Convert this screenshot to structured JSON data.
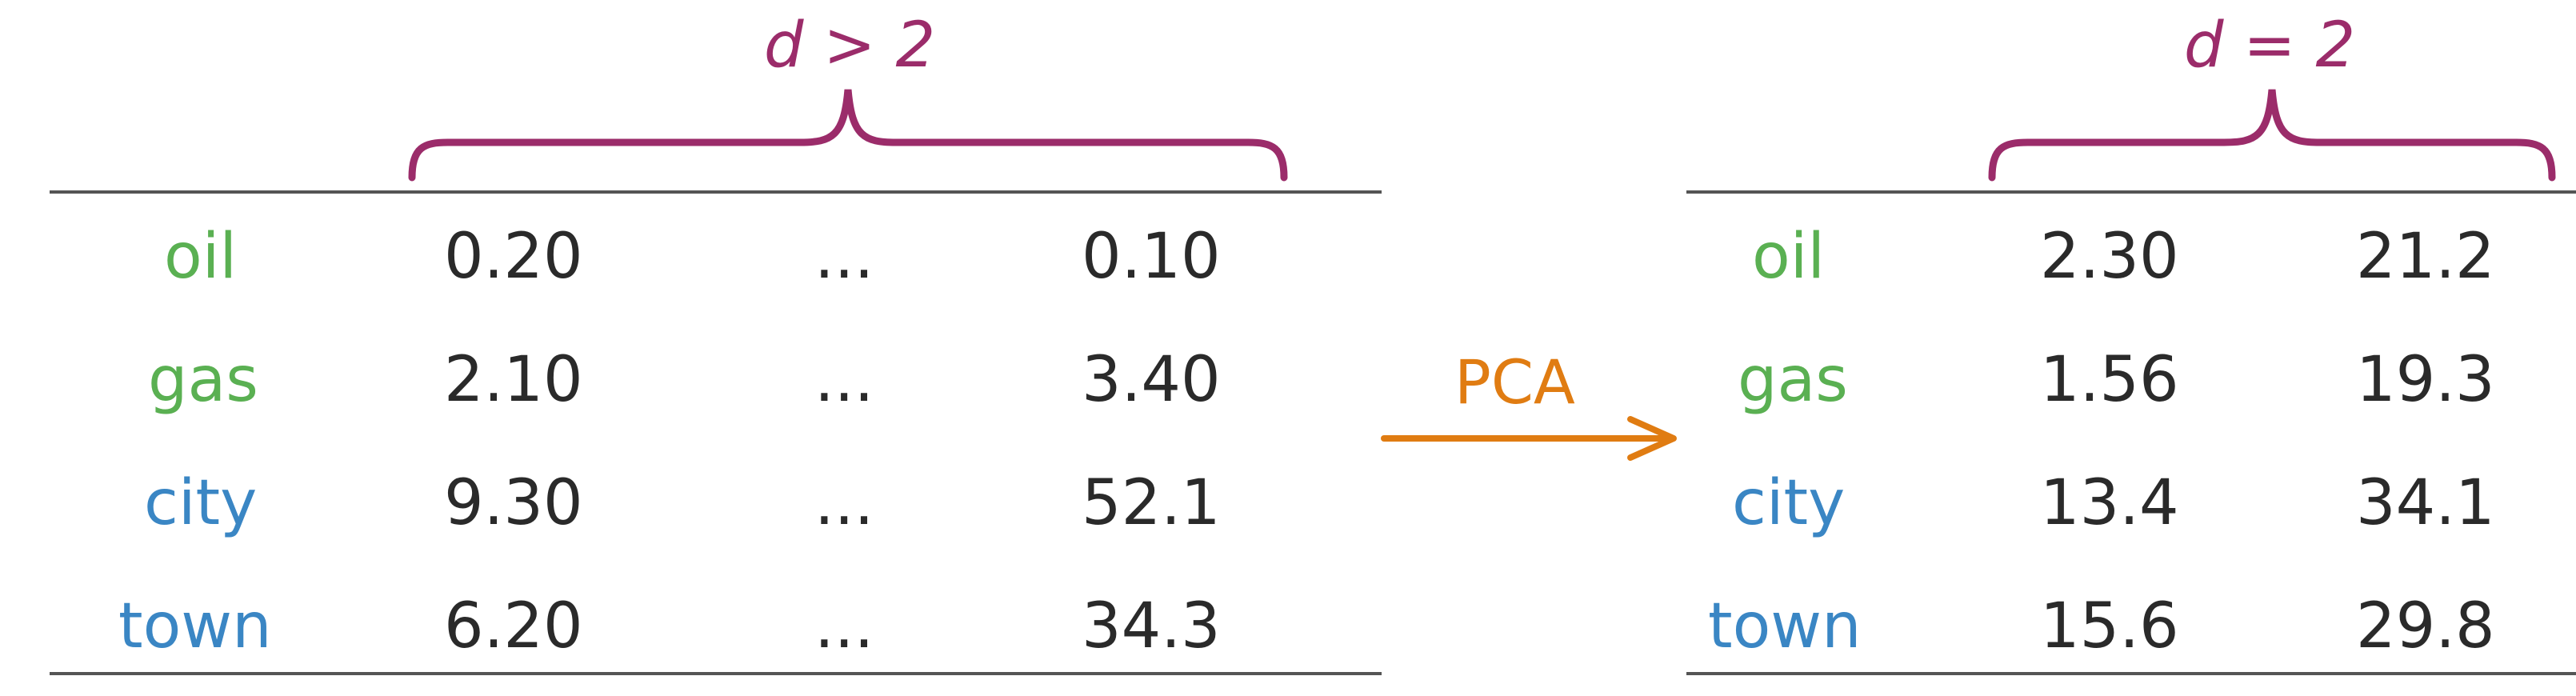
{
  "colors": {
    "bracket": "#9b2c6a",
    "word_green": "#5ab052",
    "word_blue": "#3a86c4",
    "arrow": "#e07c12",
    "text": "#2a2a2a"
  },
  "left_table": {
    "dim_label": "d > 2",
    "rows": [
      {
        "word": "oil",
        "word_color": "green",
        "c1": "0.20",
        "ellipsis": "...",
        "c3": "0.10"
      },
      {
        "word": "gas",
        "word_color": "green",
        "c1": "2.10",
        "ellipsis": "...",
        "c3": "3.40"
      },
      {
        "word": "city",
        "word_color": "blue",
        "c1": "9.30",
        "ellipsis": "...",
        "c3": "52.1"
      },
      {
        "word": "town",
        "word_color": "blue",
        "c1": "6.20",
        "ellipsis": "...",
        "c3": "34.3"
      }
    ]
  },
  "arrow": {
    "label": "PCA",
    "icon": "right-arrow-icon"
  },
  "right_table": {
    "dim_label": "d = 2",
    "rows": [
      {
        "word": "oil",
        "word_color": "green",
        "c1": "2.30",
        "c2": "21.2"
      },
      {
        "word": "gas",
        "word_color": "green",
        "c1": "1.56",
        "c2": "19.3"
      },
      {
        "word": "city",
        "word_color": "blue",
        "c1": "13.4",
        "c2": "34.1"
      },
      {
        "word": "town",
        "word_color": "blue",
        "c1": "15.6",
        "c2": "29.8"
      }
    ]
  }
}
